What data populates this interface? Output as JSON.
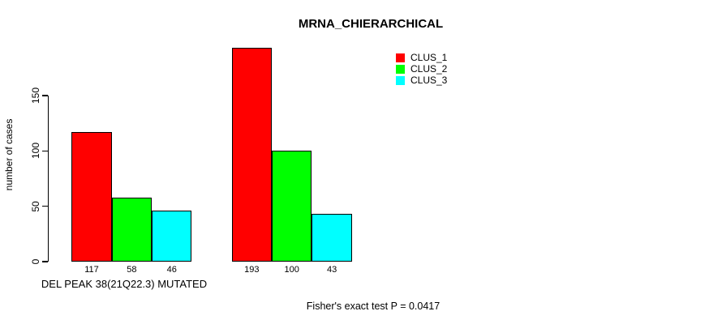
{
  "chart_data": {
    "type": "bar",
    "title": "MRNA_CHIERARCHICAL",
    "ylabel": "number of cases",
    "xlabel": "",
    "ylim": [
      0,
      150
    ],
    "yticks": [
      0,
      50,
      100,
      150
    ],
    "grid": false,
    "legend_position": "top-right",
    "categories": [
      "DEL PEAK 38(21Q22.3) MUTATED",
      ""
    ],
    "series": [
      {
        "name": "CLUS_1",
        "color": "#ff0000",
        "values": [
          117,
          193
        ]
      },
      {
        "name": "CLUS_2",
        "color": "#00ff00",
        "values": [
          58,
          100
        ]
      },
      {
        "name": "CLUS_3",
        "color": "#00ffff",
        "values": [
          46,
          43
        ]
      }
    ],
    "bar_value_labels_shown": true,
    "annotation": "Fisher's exact test P = 0.0417"
  },
  "colors": {
    "background": "#ffffff",
    "bar_border": "#000000",
    "axis": "#000000",
    "text": "#000000"
  }
}
